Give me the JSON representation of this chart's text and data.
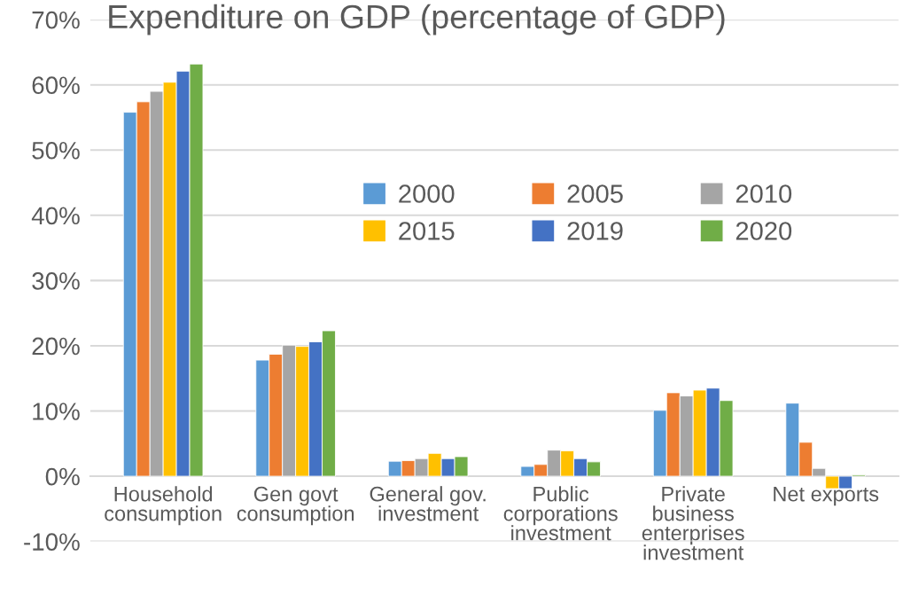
{
  "chart_data": {
    "type": "bar",
    "title": "Expenditure on GDP (percentage of GDP)",
    "categories": [
      "Household\nconsumption",
      "Gen govt\nconsumption",
      "General gov.\ninvestment",
      "Public\ncorporations\ninvestment",
      "Private\nbusiness\nenterprises\ninvestment",
      "Net exports"
    ],
    "series": [
      {
        "name": "2000",
        "color": "#5b9bd5",
        "values": [
          55.8,
          17.8,
          2.3,
          1.5,
          10.1,
          11.2
        ]
      },
      {
        "name": "2005",
        "color": "#ed7d31",
        "values": [
          57.4,
          18.7,
          2.4,
          1.8,
          12.8,
          5.2
        ]
      },
      {
        "name": "2010",
        "color": "#a5a5a5",
        "values": [
          59.0,
          20.1,
          2.7,
          4.0,
          12.3,
          1.2
        ]
      },
      {
        "name": "2015",
        "color": "#ffc000",
        "values": [
          60.4,
          19.9,
          3.5,
          3.9,
          13.2,
          -1.9
        ]
      },
      {
        "name": "2019",
        "color": "#4472c4",
        "values": [
          62.1,
          20.6,
          2.7,
          2.7,
          13.5,
          -1.9
        ]
      },
      {
        "name": "2020",
        "color": "#70ad47",
        "values": [
          63.2,
          22.3,
          3.0,
          2.2,
          11.6,
          0.2
        ]
      }
    ],
    "ylim": [
      -10,
      70
    ],
    "yticks": [
      {
        "value": -10,
        "label": "-10%"
      },
      {
        "value": 0,
        "label": "0%"
      },
      {
        "value": 10,
        "label": "10%"
      },
      {
        "value": 20,
        "label": "20%"
      },
      {
        "value": 30,
        "label": "30%"
      },
      {
        "value": 40,
        "label": "40%"
      },
      {
        "value": 50,
        "label": "50%"
      },
      {
        "value": 60,
        "label": "60%"
      },
      {
        "value": 70,
        "label": "70%"
      }
    ],
    "grid": "y",
    "legend": "right"
  }
}
